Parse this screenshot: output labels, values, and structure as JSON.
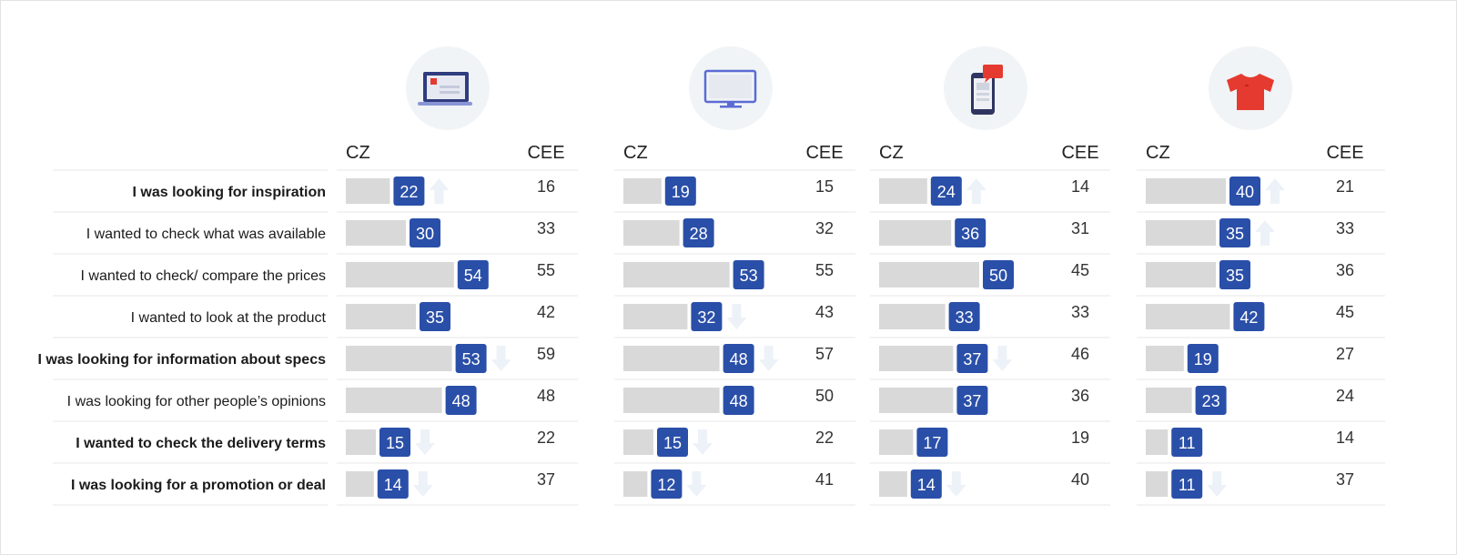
{
  "chart_data": {
    "type": "bar",
    "column_headers": {
      "left": "CZ",
      "right": "CEE"
    },
    "categories": [
      {
        "label": "I was looking for inspiration",
        "bold": true
      },
      {
        "label": "I wanted to check what was available",
        "bold": false
      },
      {
        "label": "I wanted to check/ compare the prices",
        "bold": false
      },
      {
        "label": "I wanted to look at the product",
        "bold": false
      },
      {
        "label": "I was looking for information about specs",
        "bold": true
      },
      {
        "label": "I was looking for other people’s opinions",
        "bold": false
      },
      {
        "label": "I wanted to check the delivery terms",
        "bold": true
      },
      {
        "label": "I was looking for a promotion or deal",
        "bold": true
      }
    ],
    "panels": [
      {
        "icon": "laptop-icon",
        "cz": [
          22,
          30,
          54,
          35,
          53,
          48,
          15,
          14
        ],
        "cee": [
          16,
          33,
          55,
          42,
          59,
          48,
          22,
          37
        ],
        "arrows": [
          "up",
          "",
          "",
          "",
          "down",
          "",
          "down",
          "down"
        ]
      },
      {
        "icon": "tv-icon",
        "cz": [
          19,
          28,
          53,
          32,
          48,
          48,
          15,
          12
        ],
        "cee": [
          15,
          32,
          55,
          43,
          57,
          50,
          22,
          41
        ],
        "arrows": [
          "",
          "",
          "",
          "down",
          "down",
          "",
          "down",
          "down"
        ]
      },
      {
        "icon": "smartphone-icon",
        "cz": [
          24,
          36,
          50,
          33,
          37,
          37,
          17,
          14
        ],
        "cee": [
          14,
          31,
          45,
          33,
          46,
          36,
          19,
          40
        ],
        "arrows": [
          "up",
          "",
          "",
          "",
          "down",
          "",
          "",
          "down"
        ]
      },
      {
        "icon": "tshirt-icon",
        "cz": [
          40,
          35,
          35,
          42,
          19,
          23,
          11,
          11
        ],
        "cee": [
          21,
          33,
          36,
          45,
          27,
          24,
          14,
          37
        ],
        "arrows": [
          "up",
          "up",
          "",
          "",
          "",
          "",
          "",
          "down"
        ]
      }
    ],
    "colors": {
      "bar": "#d9d9d9",
      "badge": "#2a4fa8",
      "arrow": "#edf2f8",
      "icon_circle": "#f1f4f6",
      "laptop_accent": "#e53a2f",
      "tv_outline": "#5b6bd4",
      "phone_bubble": "#e53a2f",
      "tshirt": "#e53a2f",
      "row_line": "#e7e7e7"
    }
  }
}
